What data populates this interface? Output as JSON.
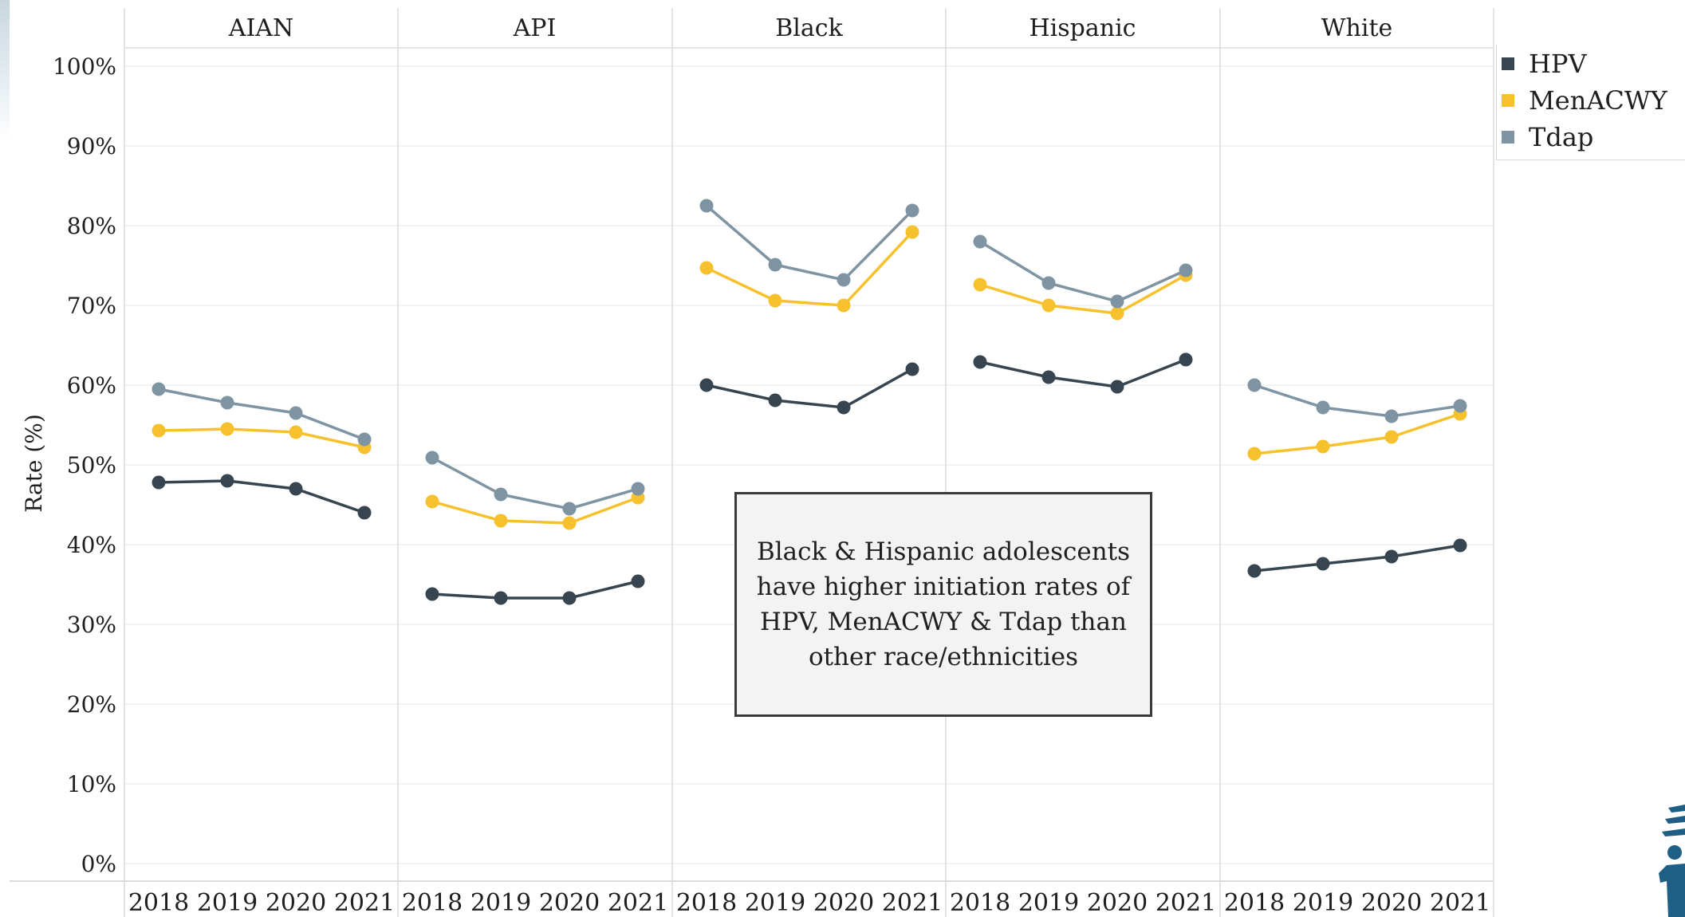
{
  "chart_data": {
    "type": "line",
    "ylabel": "Rate (%)",
    "ylim": [
      0,
      100
    ],
    "yticks": [
      "0%",
      "10%",
      "20%",
      "30%",
      "40%",
      "50%",
      "60%",
      "70%",
      "80%",
      "90%",
      "100%"
    ],
    "x": [
      "2018",
      "2019",
      "2020",
      "2021"
    ],
    "panels": [
      {
        "title": "AIAN",
        "series": [
          {
            "name": "HPV",
            "values": [
              47.8,
              48.0,
              47.0,
              44.0
            ]
          },
          {
            "name": "MenACWY",
            "values": [
              54.3,
              54.5,
              54.1,
              52.2
            ]
          },
          {
            "name": "Tdap",
            "values": [
              59.5,
              57.8,
              56.5,
              53.2
            ]
          }
        ]
      },
      {
        "title": "API",
        "series": [
          {
            "name": "HPV",
            "values": [
              33.8,
              33.3,
              33.3,
              35.4
            ]
          },
          {
            "name": "MenACWY",
            "values": [
              45.4,
              43.0,
              42.7,
              45.9
            ]
          },
          {
            "name": "Tdap",
            "values": [
              50.9,
              46.3,
              44.5,
              47.0
            ]
          }
        ]
      },
      {
        "title": "Black",
        "series": [
          {
            "name": "HPV",
            "values": [
              60.0,
              58.1,
              57.2,
              62.0
            ]
          },
          {
            "name": "MenACWY",
            "values": [
              74.7,
              70.6,
              70.0,
              79.2
            ]
          },
          {
            "name": "Tdap",
            "values": [
              82.5,
              75.1,
              73.2,
              81.9
            ]
          }
        ]
      },
      {
        "title": "Hispanic",
        "series": [
          {
            "name": "HPV",
            "values": [
              62.9,
              61.0,
              59.8,
              63.2
            ]
          },
          {
            "name": "MenACWY",
            "values": [
              72.6,
              70.0,
              69.0,
              73.8
            ]
          },
          {
            "name": "Tdap",
            "values": [
              78.0,
              72.8,
              70.5,
              74.4
            ]
          }
        ]
      },
      {
        "title": "White",
        "series": [
          {
            "name": "HPV",
            "values": [
              36.7,
              37.6,
              38.5,
              39.9
            ]
          },
          {
            "name": "MenACWY",
            "values": [
              51.4,
              52.3,
              53.5,
              56.4
            ]
          },
          {
            "name": "Tdap",
            "values": [
              60.0,
              57.2,
              56.1,
              57.4
            ]
          }
        ]
      }
    ],
    "legend": {
      "position": "top-right",
      "items": [
        {
          "name": "HPV",
          "color": "#36454f"
        },
        {
          "name": "MenACWY",
          "color": "#f7c12d"
        },
        {
          "name": "Tdap",
          "color": "#7f94a2"
        }
      ]
    },
    "colors": {
      "HPV": "#36454f",
      "MenACWY": "#f7c12d",
      "Tdap": "#7f94a2"
    },
    "grid": true,
    "annotation": "Black & Hispanic adolescents have higher initiation rates of HPV, MenACWY  & Tdap than other race/ethnicities"
  }
}
